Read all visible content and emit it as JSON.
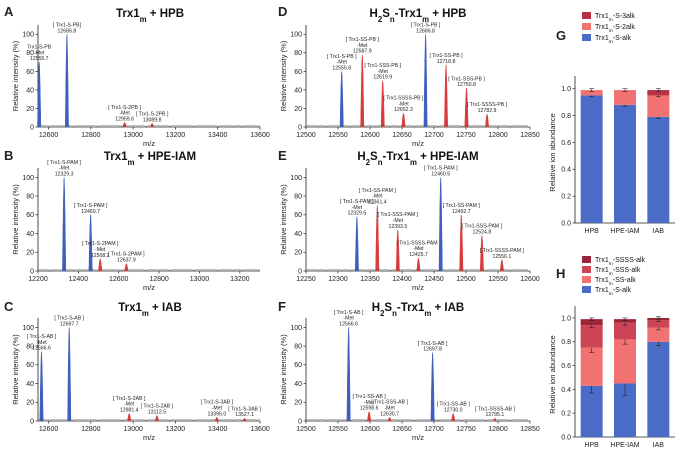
{
  "chart_data": [
    {
      "type": "line",
      "panel": "A",
      "title": "Trx1m + HPB",
      "title_segments": [
        [
          "Trx1",
          "n"
        ],
        [
          "m",
          "s"
        ],
        [
          " + HPB",
          "n"
        ]
      ],
      "xlabel": "m/z",
      "ylabel": "Relative intensity (%)",
      "xlim": [
        12550,
        13600
      ],
      "ylim": [
        0,
        110
      ],
      "xticks": [
        12600,
        12800,
        13000,
        13200,
        13400,
        13600
      ],
      "yticks": [
        0,
        20,
        40,
        60,
        80,
        100
      ],
      "peaks": [
        {
          "mz": 12555.7,
          "height": 70,
          "color": "#3e5fbf",
          "label": [
            "Trx1-S-PB",
            "-Met",
            "12555.7"
          ]
        },
        {
          "mz": 12686.8,
          "height": 100,
          "color": "#3e5fbf",
          "label": [
            "[ Trx1-S-PB]",
            "12686.8"
          ]
        },
        {
          "mz": 12959.6,
          "height": 5,
          "color": "#d93b3b",
          "label": [
            "[ Trx1-S-2PB ]",
            "-Met",
            "12959.6"
          ]
        },
        {
          "mz": 13089.8,
          "height": 4,
          "color": "#d93b3b",
          "label": [
            "[ Trx1-S-2PB ]",
            "13089.8"
          ]
        }
      ]
    },
    {
      "type": "line",
      "panel": "B",
      "title": "Trx1m + HPE-IAM",
      "title_segments": [
        [
          "Trx1",
          "n"
        ],
        [
          "m",
          "s"
        ],
        [
          " + HPE-IAM",
          "n"
        ]
      ],
      "xlabel": "m/z",
      "ylabel": "Relative intensity (%)",
      "xlim": [
        12200,
        13300
      ],
      "ylim": [
        0,
        110
      ],
      "xticks": [
        12200,
        12400,
        12600,
        12800,
        13000,
        13200
      ],
      "yticks": [
        0,
        20,
        40,
        60,
        80,
        100
      ],
      "peaks": [
        {
          "mz": 12329.3,
          "height": 100,
          "color": "#3e5fbf",
          "label": [
            "[ Trx1-S-PAM ]",
            "-Met",
            "12329.3"
          ]
        },
        {
          "mz": 12460.7,
          "height": 60,
          "color": "#3e5fbf",
          "label": [
            "[ Trx1-S-PAM ]",
            "12460.7"
          ]
        },
        {
          "mz": 12508.2,
          "height": 13,
          "color": "#d93b3b",
          "label": [
            "[ Trx1-S-2PAM ]",
            "-Met",
            "12508.2"
          ]
        },
        {
          "mz": 12637.9,
          "height": 8,
          "color": "#d93b3b",
          "label": [
            "[ Trx1-S-2PAM ]",
            "12637.9"
          ]
        }
      ]
    },
    {
      "type": "line",
      "panel": "C",
      "title": "Trx1m + IAB",
      "title_segments": [
        [
          "Trx1",
          "n"
        ],
        [
          "m",
          "s"
        ],
        [
          " + IAB",
          "n"
        ]
      ],
      "xlabel": "m/z",
      "ylabel": "Relative intensity (%)",
      "xlim": [
        12550,
        13600
      ],
      "ylim": [
        0,
        110
      ],
      "xticks": [
        12600,
        12800,
        13000,
        13200,
        13400,
        13600
      ],
      "yticks": [
        0,
        20,
        40,
        60,
        80,
        100
      ],
      "peaks": [
        {
          "mz": 12566.6,
          "height": 74,
          "color": "#3e5fbf",
          "label": [
            "[ Trx1-S-AB ]",
            "-Met",
            "12566.6"
          ]
        },
        {
          "mz": 12697.7,
          "height": 100,
          "color": "#3e5fbf",
          "label": [
            "[ Trx1-S-AB ]",
            "12697.7"
          ]
        },
        {
          "mz": 12981.4,
          "height": 8,
          "color": "#d93b3b",
          "label": [
            "[ Trx1-S-2AB ]",
            "-Met",
            "12981.4"
          ]
        },
        {
          "mz": 13112.5,
          "height": 6,
          "color": "#d93b3b",
          "label": [
            "[ Trx1-S-2AB ]",
            "13112.5"
          ]
        },
        {
          "mz": 13396.0,
          "height": 4,
          "color": "#d93b3b",
          "label": [
            "[ Trx1-S-3AB ]",
            "-Met",
            "13396.0"
          ]
        },
        {
          "mz": 13527.1,
          "height": 3,
          "color": "#d93b3b",
          "label": [
            "[ Trx1-S-3AB ]",
            "13527.1"
          ]
        }
      ]
    },
    {
      "type": "line",
      "panel": "D",
      "title": "H2Sn-Trx1m + HPB",
      "title_segments": [
        [
          "H",
          "n"
        ],
        [
          "2",
          "s"
        ],
        [
          "S",
          "n"
        ],
        [
          "n",
          "s"
        ],
        [
          "-Trx1",
          "n"
        ],
        [
          "m",
          "s"
        ],
        [
          " + HPB",
          "n"
        ]
      ],
      "xlabel": "m/z",
      "ylabel": "Relative intensity (%)",
      "xlim": [
        12500,
        12850
      ],
      "ylim": [
        0,
        110
      ],
      "xticks": [
        12500,
        12550,
        12600,
        12650,
        12700,
        12750,
        12800,
        12850
      ],
      "yticks": [
        0,
        20,
        40,
        60,
        80,
        100
      ],
      "peaks": [
        {
          "mz": 12555.8,
          "height": 60,
          "color": "#3e5fbf",
          "label": [
            "[ Trx1-S-PB ]",
            "-Met",
            "12555.8"
          ]
        },
        {
          "mz": 12587.9,
          "height": 78,
          "color": "#d93b3b",
          "label": [
            "[ Trx1-SS-PB ]",
            "-Met",
            "12587.9"
          ]
        },
        {
          "mz": 12619.9,
          "height": 50,
          "color": "#d93b3b",
          "label": [
            "[ Trx1-SSS-PB ]",
            "-Met",
            "12619.9"
          ]
        },
        {
          "mz": 12652.3,
          "height": 15,
          "color": "#d93b3b",
          "label": [
            "[ Trx1-SSSS-PB ]",
            "-Met",
            "12652.3"
          ]
        },
        {
          "mz": 12686.8,
          "height": 100,
          "color": "#3e5fbf",
          "label": [
            "[ Trx1-S-PB ]",
            "12686.8"
          ]
        },
        {
          "mz": 12718.8,
          "height": 67,
          "color": "#d93b3b",
          "label": [
            "[ Trx1-SS-PB ]",
            "12718.8"
          ]
        },
        {
          "mz": 12750.8,
          "height": 42,
          "color": "#d93b3b",
          "label": [
            "[ Trx1-SSS-PB ]",
            "12750.8"
          ]
        },
        {
          "mz": 12782.9,
          "height": 14,
          "color": "#d93b3b",
          "label": [
            "[ Trx1-SSSS-PB ]",
            "12782.9"
          ]
        }
      ]
    },
    {
      "type": "line",
      "panel": "E",
      "title": "H2Sn-Trx1m + HPE-IAM",
      "title_segments": [
        [
          "H",
          "n"
        ],
        [
          "2",
          "s"
        ],
        [
          "S",
          "n"
        ],
        [
          "n",
          "s"
        ],
        [
          "-Trx1",
          "n"
        ],
        [
          "m",
          "s"
        ],
        [
          " + HPE-IAM",
          "n"
        ]
      ],
      "xlabel": "m/z",
      "ylabel": "Relative intensity (%)",
      "xlim": [
        12250,
        12600
      ],
      "ylim": [
        0,
        110
      ],
      "xticks": [
        12250,
        12300,
        12350,
        12400,
        12450,
        12500,
        12550,
        12600
      ],
      "yticks": [
        0,
        20,
        40,
        60,
        80,
        100
      ],
      "peaks": [
        {
          "mz": 12329.5,
          "height": 58,
          "color": "#3e5fbf",
          "label": [
            "[ Trx1-S-PAM ]",
            "-Met",
            "12329.5"
          ]
        },
        {
          "mz": 12361.4,
          "height": 70,
          "color": "#d93b3b",
          "label": [
            "[ Trx1-SS-PAM ]",
            "-Met",
            "12361.4"
          ]
        },
        {
          "mz": 12393.5,
          "height": 44,
          "color": "#d93b3b",
          "label": [
            "[ Trx1-SSS-PAM ]",
            "-Met",
            "12393.5"
          ]
        },
        {
          "mz": 12425.7,
          "height": 14,
          "color": "#d93b3b",
          "label": [
            "[ Trx1-SSSS-PAM ]",
            "-Met",
            "12425.7"
          ]
        },
        {
          "mz": 12460.5,
          "height": 100,
          "color": "#3e5fbf",
          "label": [
            "[ Trx1-S-PAM ]",
            "12460.5"
          ]
        },
        {
          "mz": 12492.7,
          "height": 60,
          "color": "#d93b3b",
          "label": [
            "[ Trx1-SS-PAM ]",
            "12492.7"
          ]
        },
        {
          "mz": 12524.8,
          "height": 38,
          "color": "#d93b3b",
          "label": [
            "[ Trx1-SSS-PAM ]",
            "12524.8"
          ]
        },
        {
          "mz": 12556.1,
          "height": 12,
          "color": "#d93b3b",
          "label": [
            "[ Trx1-SSSS-PAM ]",
            "12556.1"
          ]
        }
      ]
    },
    {
      "type": "line",
      "panel": "F",
      "title": "H2Sn-Trx1m + IAB",
      "title_segments": [
        [
          "H",
          "n"
        ],
        [
          "2",
          "s"
        ],
        [
          "S",
          "n"
        ],
        [
          "n",
          "s"
        ],
        [
          "-Trx1",
          "n"
        ],
        [
          "m",
          "s"
        ],
        [
          " + IAB",
          "n"
        ]
      ],
      "xlabel": "m/z",
      "ylabel": "Relative intensity (%)",
      "xlim": [
        12500,
        12850
      ],
      "ylim": [
        0,
        110
      ],
      "xticks": [
        12500,
        12550,
        12600,
        12650,
        12700,
        12750,
        12800,
        12850
      ],
      "yticks": [
        0,
        20,
        40,
        60,
        80,
        100
      ],
      "peaks": [
        {
          "mz": 12566.6,
          "height": 100,
          "color": "#3e5fbf",
          "label": [
            "[ Trx1-S-AB ]",
            "-Met",
            "12566.6"
          ]
        },
        {
          "mz": 12598.6,
          "height": 10,
          "color": "#d93b3b",
          "label": [
            "[ Trx1-SS-AB ]",
            "-Met",
            "12598.6"
          ]
        },
        {
          "mz": 12630.7,
          "height": 4,
          "color": "#d93b3b",
          "label": [
            "[ Trx1-SSS-AB ]",
            "-Met",
            "12630.7"
          ]
        },
        {
          "mz": 12697.8,
          "height": 73,
          "color": "#3e5fbf",
          "label": [
            "[ Trx1-S-AB ]",
            "12697.8"
          ]
        },
        {
          "mz": 12730.0,
          "height": 8,
          "color": "#d93b3b",
          "label": [
            "[ Trx1-SS-AB ]",
            "12730.0"
          ]
        },
        {
          "mz": 12795.1,
          "height": 3,
          "color": "#d93b3b",
          "label": [
            "[ Trx1-SSSS-AB ]",
            "12795.1"
          ]
        }
      ]
    },
    {
      "type": "bar",
      "stacked": true,
      "panel": "G",
      "categories": [
        "HPB",
        "HPE-IAM",
        "IAB"
      ],
      "ylabel": "Relative ion abundance",
      "ylim": [
        0,
        1.05
      ],
      "yticks": [
        0.0,
        0.2,
        0.4,
        0.6,
        0.8,
        1.0
      ],
      "legend_position": "top",
      "series": [
        {
          "name": "Trx1m-S-alk",
          "name_segments": [
            [
              "Trx1",
              "n"
            ],
            [
              "m",
              "s"
            ],
            [
              "-S-alk",
              "n"
            ]
          ],
          "color": "#4a6cc7",
          "values": [
            0.95,
            0.88,
            0.79
          ],
          "errors": [
            0.01,
            0.01,
            0.01
          ]
        },
        {
          "name": "Trx1m-S-2alk",
          "name_segments": [
            [
              "Trx1",
              "n"
            ],
            [
              "m",
              "s"
            ],
            [
              "-S-2alk",
              "n"
            ]
          ],
          "color": "#f27272",
          "values": [
            0.04,
            0.11,
            0.16
          ],
          "errors": [
            0.01,
            0.01,
            0.01
          ]
        },
        {
          "name": "Trx1m-S-3alk",
          "name_segments": [
            [
              "Trx1",
              "n"
            ],
            [
              "m",
              "s"
            ],
            [
              "-S-3alk",
              "n"
            ]
          ],
          "color": "#b53344",
          "values": [
            0.0,
            0.0,
            0.04
          ],
          "errors": [
            0.0,
            0.0,
            0.01
          ]
        }
      ]
    },
    {
      "type": "bar",
      "stacked": true,
      "panel": "H",
      "categories": [
        "HPB",
        "HPE-IAM",
        "IAB"
      ],
      "ylabel": "Relative ion abundance",
      "ylim": [
        0,
        1.05
      ],
      "yticks": [
        0.0,
        0.2,
        0.4,
        0.6,
        0.8,
        1.0
      ],
      "legend_position": "top",
      "series": [
        {
          "name": "Trx1m-S-alk",
          "name_segments": [
            [
              "Trx1",
              "n"
            ],
            [
              "m",
              "s"
            ],
            [
              "-S-alk",
              "n"
            ]
          ],
          "color": "#4a6cc7",
          "values": [
            0.43,
            0.45,
            0.8
          ],
          "errors": [
            0.06,
            0.1,
            0.03
          ]
        },
        {
          "name": "Trx1m-SS-alk",
          "name_segments": [
            [
              "Trx1",
              "n"
            ],
            [
              "m",
              "s"
            ],
            [
              "-SS-alk",
              "n"
            ]
          ],
          "color": "#f27272",
          "values": [
            0.32,
            0.37,
            0.12
          ],
          "errors": [
            0.04,
            0.04,
            0.02
          ]
        },
        {
          "name": "Trx1m-SSS-alk",
          "name_segments": [
            [
              "Trx1",
              "n"
            ],
            [
              "m",
              "s"
            ],
            [
              "-SSS-alk",
              "n"
            ]
          ],
          "color": "#cc4455",
          "values": [
            0.19,
            0.14,
            0.06
          ],
          "errors": [
            0.02,
            0.02,
            0.01
          ]
        },
        {
          "name": "Trx1m-SSSS-alk",
          "name_segments": [
            [
              "Trx1",
              "n"
            ],
            [
              "m",
              "s"
            ],
            [
              "-SSSS-alk",
              "n"
            ]
          ],
          "color": "#9e2438",
          "values": [
            0.05,
            0.03,
            0.02
          ],
          "errors": [
            0.01,
            0.01,
            0.01
          ]
        }
      ]
    }
  ]
}
